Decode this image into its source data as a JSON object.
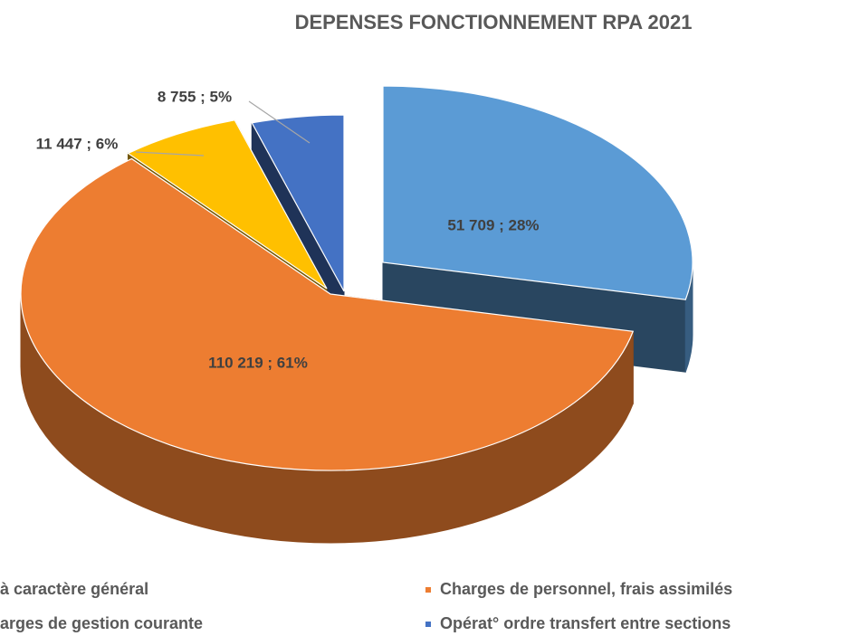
{
  "chart_data": {
    "type": "pie3d",
    "title": "DEPENSES FONCTIONNEMENT RPA 2021",
    "categories": [
      "à caractère général",
      "Charges de personnel, frais assimilés",
      "arges de gestion courante",
      "Opérat° ordre transfert entre sections"
    ],
    "values": [
      51709,
      110219,
      11447,
      8755
    ],
    "value_labels": [
      "51 709  ; 28%",
      "110 219  ; 61%",
      "11 447  ; 6%",
      "8 755  ; 5%"
    ],
    "colors": [
      "#5b9bd5",
      "#ed7d31",
      "#ffc000",
      "#4472c4"
    ]
  }
}
